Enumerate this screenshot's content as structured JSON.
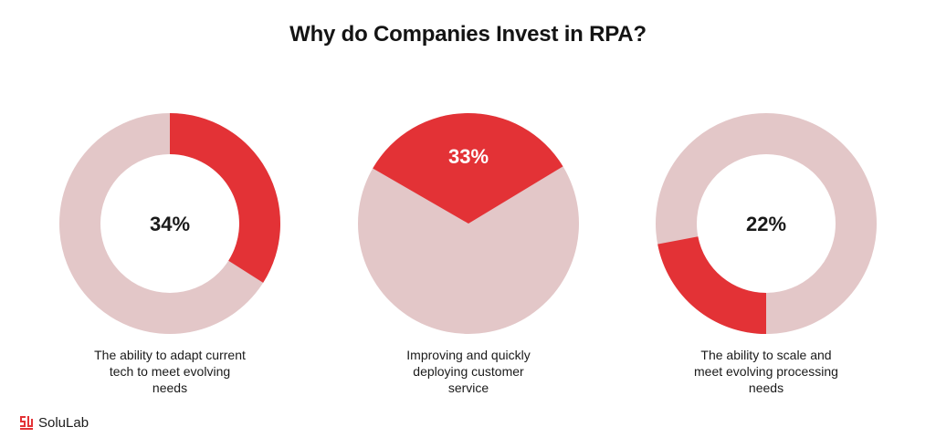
{
  "title": "Why do Companies Invest in RPA?",
  "colors": {
    "highlight": "#e33236",
    "remainder": "#e3c7c8",
    "background": "#ffffff"
  },
  "chart_data": [
    {
      "type": "pie",
      "style": "donut",
      "value": 34,
      "label": "34%",
      "caption_lines": [
        "The ability to adapt current",
        "tech to meet evolving",
        "needs"
      ]
    },
    {
      "type": "pie",
      "style": "pie",
      "value": 33,
      "label": "33%",
      "caption_lines": [
        "Improving and quickly",
        "deploying customer",
        "service"
      ]
    },
    {
      "type": "pie",
      "style": "donut",
      "value": 22,
      "label": "22%",
      "caption_lines": [
        "The ability to scale and",
        "meet evolving processing",
        "needs"
      ]
    }
  ],
  "brand": {
    "name": "SoluLab",
    "icon": "solulab-logo-icon"
  }
}
